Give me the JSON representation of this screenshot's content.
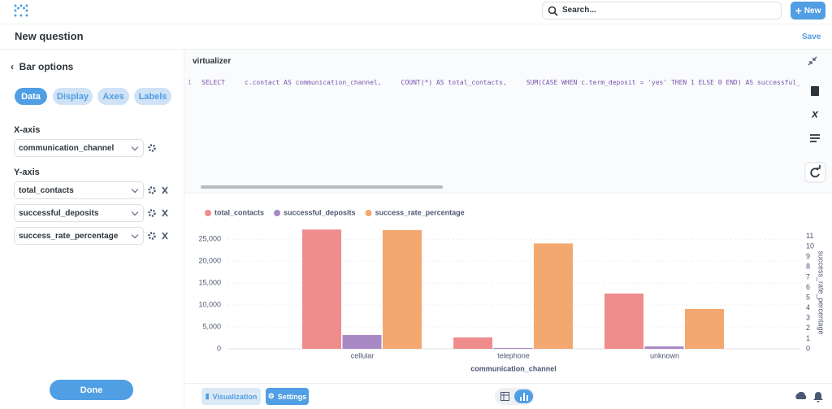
{
  "header": {
    "search_placeholder": "Search...",
    "new_button": "New"
  },
  "question": {
    "title": "New question",
    "save": "Save"
  },
  "sidebar": {
    "title": "Bar options",
    "tabs": [
      "Data",
      "Display",
      "Axes",
      "Labels"
    ],
    "x_axis_label": "X-axis",
    "x_axis_field": "communication_channel",
    "y_axis_label": "Y-axis",
    "y_axis_fields": [
      "total_contacts",
      "successful_deposits",
      "success_rate_percentage"
    ],
    "done": "Done"
  },
  "editor": {
    "database": "virtualizer",
    "line_number": 1,
    "sql": "SELECT     c.contact AS communication_channel,     COUNT(*) AS total_contacts,     SUM(CASE WHEN c.term_deposit = 'yes' THEN 1 ELSE 0 END) AS successful_depos"
  },
  "footer": {
    "visualization": "Visualization",
    "settings": "Settings"
  },
  "chart_data": {
    "type": "bar",
    "categories": [
      "cellular",
      "telephone",
      "unknown"
    ],
    "series": [
      {
        "name": "total_contacts",
        "color": "#ef8c8c",
        "values": [
          27200,
          2600,
          12600
        ]
      },
      {
        "name": "successful_deposits",
        "color": "#a989c5",
        "values": [
          3150,
          200,
          550
        ]
      },
      {
        "name": "success_rate_percentage",
        "color": "#f2a86f",
        "values": [
          11.6,
          10.3,
          3.9
        ],
        "axis": "y2"
      }
    ],
    "xlabel": "communication_channel",
    "y2label": "success_rate_percentage",
    "ylim": [
      0,
      28000
    ],
    "yticks": [
      0,
      {
        "value": 5000,
        "label": "5,000"
      },
      {
        "value": 10000,
        "label": "10,000"
      },
      {
        "value": 15000,
        "label": "15,000"
      },
      {
        "value": 20000,
        "label": "20,000"
      },
      {
        "value": 25000,
        "label": "25,000"
      }
    ],
    "y2lim": [
      0,
      12
    ],
    "y2ticks": [
      0,
      1,
      2,
      3,
      4,
      5,
      6,
      7,
      8,
      9,
      10,
      11
    ],
    "grid": true,
    "legend": "top-left"
  }
}
